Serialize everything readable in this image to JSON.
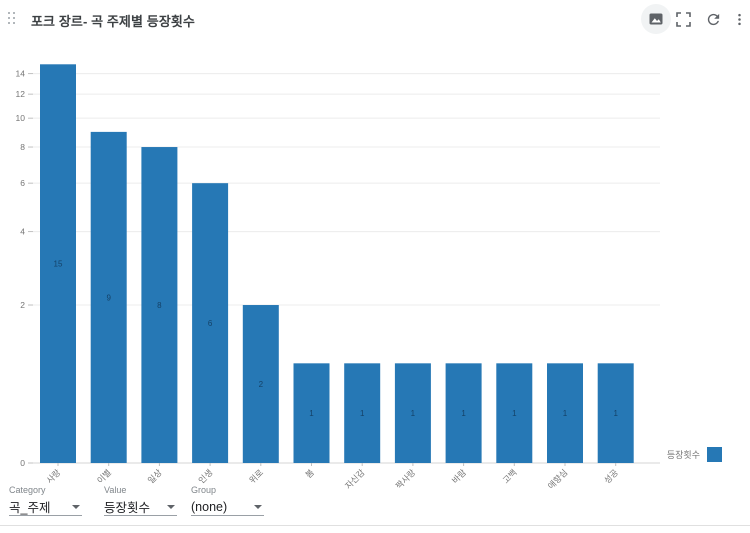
{
  "header": {
    "title": "포크 장르- 곡 주제별 등장횟수",
    "icons": [
      "image-export-icon",
      "fullscreen-icon",
      "refresh-icon",
      "more-vert-icon"
    ]
  },
  "chart_data": {
    "type": "bar",
    "title": "포크 장르- 곡 주제별 등장횟수",
    "categories": [
      "사랑",
      "이별",
      "일상",
      "인생",
      "위로",
      "봄",
      "자신감",
      "짝사랑",
      "바람",
      "고백",
      "애향심",
      "성공"
    ],
    "values": [
      15,
      9,
      8,
      6,
      2,
      1,
      1,
      1,
      1,
      1,
      1,
      1
    ],
    "series_name": "등장횟수",
    "xlabel": "",
    "ylabel": "",
    "yticks": [
      0,
      2,
      4,
      6,
      8,
      10,
      12,
      14
    ],
    "ylim": [
      0,
      15
    ],
    "y_scale": "log1p",
    "grid": true,
    "bar_labels_shown": true,
    "legend_position": "bottom-right",
    "bar_color": "#2678b5"
  },
  "legend": {
    "label": "등장횟수",
    "color": "#2678b5"
  },
  "controls": [
    {
      "label": "Category",
      "value": "곡_주제"
    },
    {
      "label": "Value",
      "value": "등장횟수"
    },
    {
      "label": "Group",
      "value": "(none)"
    }
  ]
}
